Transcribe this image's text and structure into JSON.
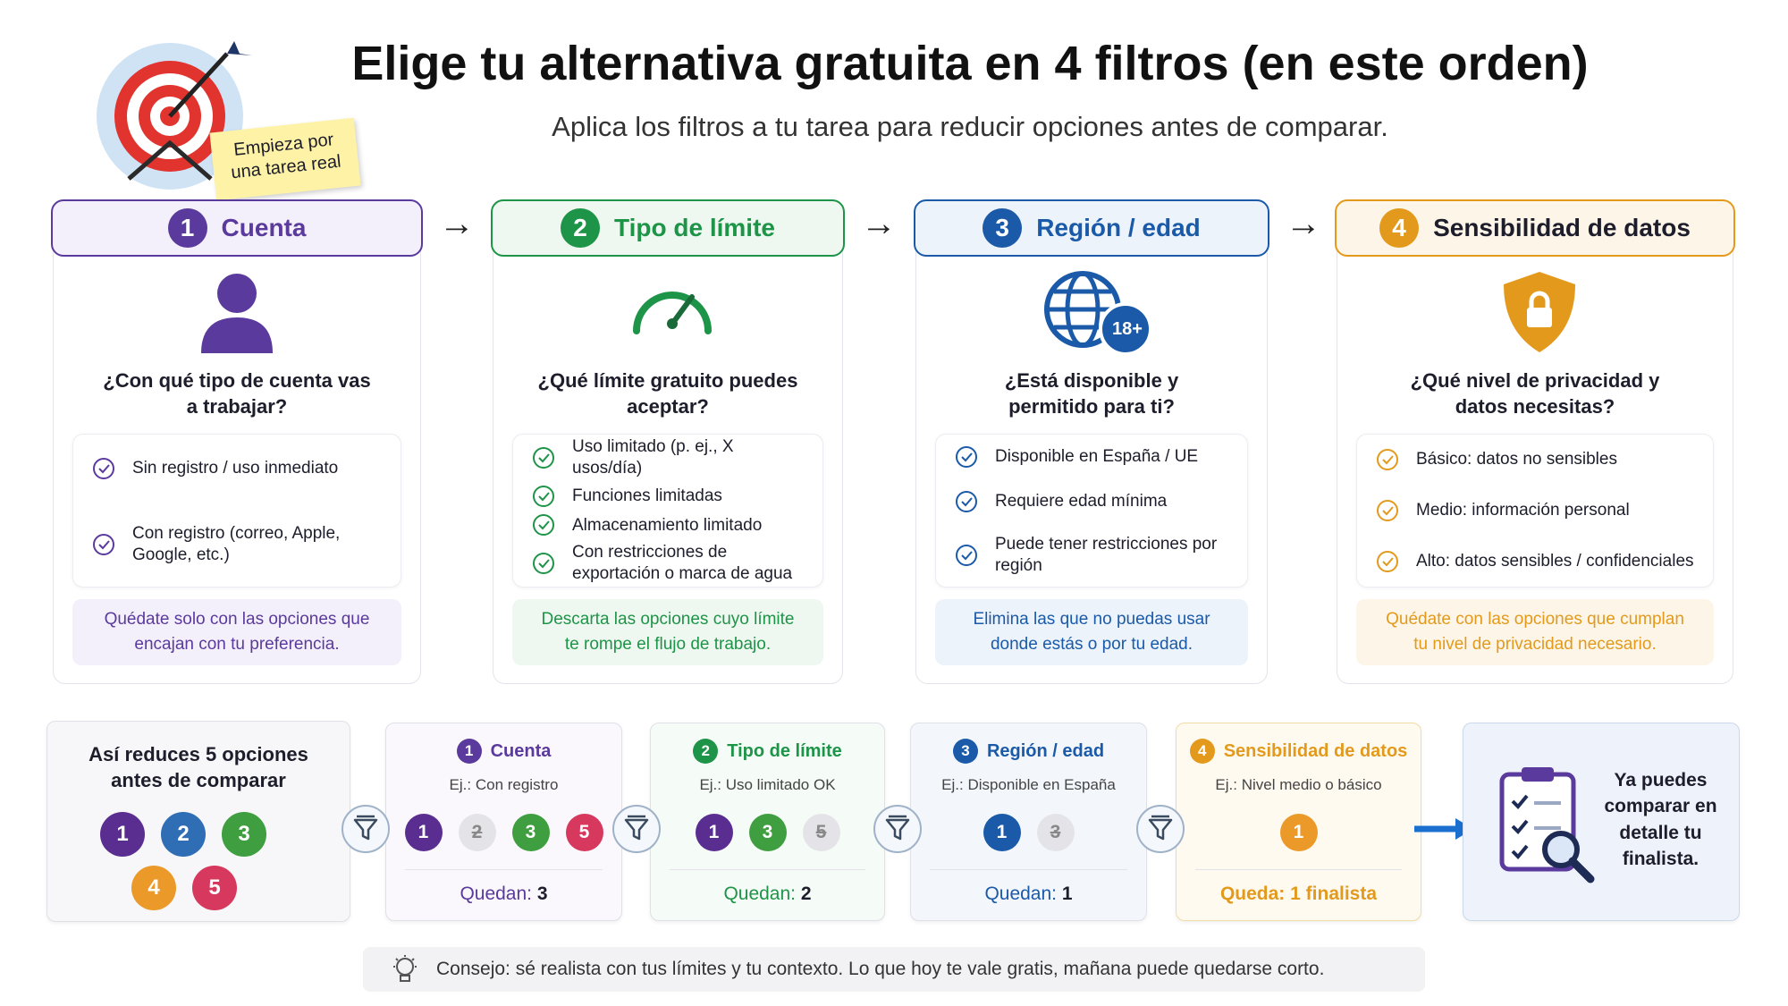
{
  "header": {
    "title": "Elige tu alternativa gratuita en 4 filtros (en este orden)",
    "subtitle": "Aplica los filtros a tu tarea para reducir opciones antes de comparar.",
    "sticky_note": "Empieza por una tarea real"
  },
  "steps": [
    {
      "number": "1",
      "title": "Cuenta",
      "color": "#5a3a9c",
      "tint": "#f4f0fb",
      "question": "¿Con qué tipo de cuenta vas a trabajar?",
      "options": [
        "Sin registro / uso inmediato",
        "Con registro (correo, Apple, Google, etc.)"
      ],
      "note": "Quédate solo con las opciones que encajan con tu preferencia."
    },
    {
      "number": "2",
      "title": "Tipo de límite",
      "color": "#1e9448",
      "tint": "#eef8f0",
      "question": "¿Qué límite gratuito puedes aceptar?",
      "options": [
        "Uso limitado (p. ej., X usos/día)",
        "Funciones limitadas",
        "Almacenamiento limitado",
        "Con restricciones de exportación o marca de agua"
      ],
      "note": "Descarta las opciones cuyo límite te rompe el flujo de trabajo."
    },
    {
      "number": "3",
      "title": "Región / edad",
      "color": "#1a5aa8",
      "tint": "#edf3fb",
      "badge": "18+",
      "question": "¿Está disponible y permitido para ti?",
      "options": [
        "Disponible en España / UE",
        "Requiere edad mínima",
        "Puede tener restricciones por región"
      ],
      "note": "Elimina las que no puedas usar donde estás o por tu edad."
    },
    {
      "number": "4",
      "title": "Sensibilidad de datos",
      "color": "#e39a1c",
      "tint": "#fdf6e8",
      "question": "¿Qué nivel de privacidad y datos necesitas?",
      "options": [
        "Básico: datos no sensibles",
        "Medio: información personal",
        "Alto: datos sensibles / confidenciales"
      ],
      "note": "Quédate con las opciones que cumplan tu nivel de privacidad necesario."
    }
  ],
  "funnel": {
    "intro": "Así reduces 5 opciones antes de comparar",
    "start_options": [
      {
        "label": "1",
        "color": "#5a2d91"
      },
      {
        "label": "2",
        "color": "#2f6db5"
      },
      {
        "label": "3",
        "color": "#3f9e3f"
      },
      {
        "label": "4",
        "color": "#eb9a2a"
      },
      {
        "label": "5",
        "color": "#d6385e"
      }
    ],
    "stages": [
      {
        "number": "1",
        "title": "Cuenta",
        "example": "Ej.: Con registro",
        "options": [
          {
            "label": "1",
            "kept": true,
            "color": "#5a2d91"
          },
          {
            "label": "2",
            "kept": false,
            "color": "#2f6db5"
          },
          {
            "label": "3",
            "kept": true,
            "color": "#3f9e3f"
          },
          {
            "label": "5",
            "kept": true,
            "color": "#d6385e"
          }
        ],
        "remaining_label": "Quedan:",
        "remaining": "3"
      },
      {
        "number": "2",
        "title": "Tipo de límite",
        "example": "Ej.: Uso limitado OK",
        "options": [
          {
            "label": "1",
            "kept": true,
            "color": "#5a2d91"
          },
          {
            "label": "3",
            "kept": true,
            "color": "#3f9e3f"
          },
          {
            "label": "5",
            "kept": false,
            "color": "#d6385e"
          }
        ],
        "remaining_label": "Quedan:",
        "remaining": "2"
      },
      {
        "number": "3",
        "title": "Región / edad",
        "example": "Ej.: Disponible en España",
        "options": [
          {
            "label": "1",
            "kept": true,
            "color": "#1a5aa8"
          },
          {
            "label": "3",
            "kept": false,
            "color": "#3f9e3f"
          }
        ],
        "remaining_label": "Quedan:",
        "remaining": "1"
      },
      {
        "number": "4",
        "title": "Sensibilidad de datos",
        "example": "Ej.: Nivel medio o básico",
        "options": [
          {
            "label": "1",
            "kept": true,
            "color": "#eb9a2a"
          }
        ],
        "remaining_label": "Queda:",
        "remaining": "1",
        "remaining_suffix": "finalista"
      }
    ],
    "result": "Ya puedes comparar en detalle tu finalista."
  },
  "tip": "Consejo: sé realista con tus límites y tu contexto. Lo que hoy te vale gratis, mañana puede quedarse corto."
}
